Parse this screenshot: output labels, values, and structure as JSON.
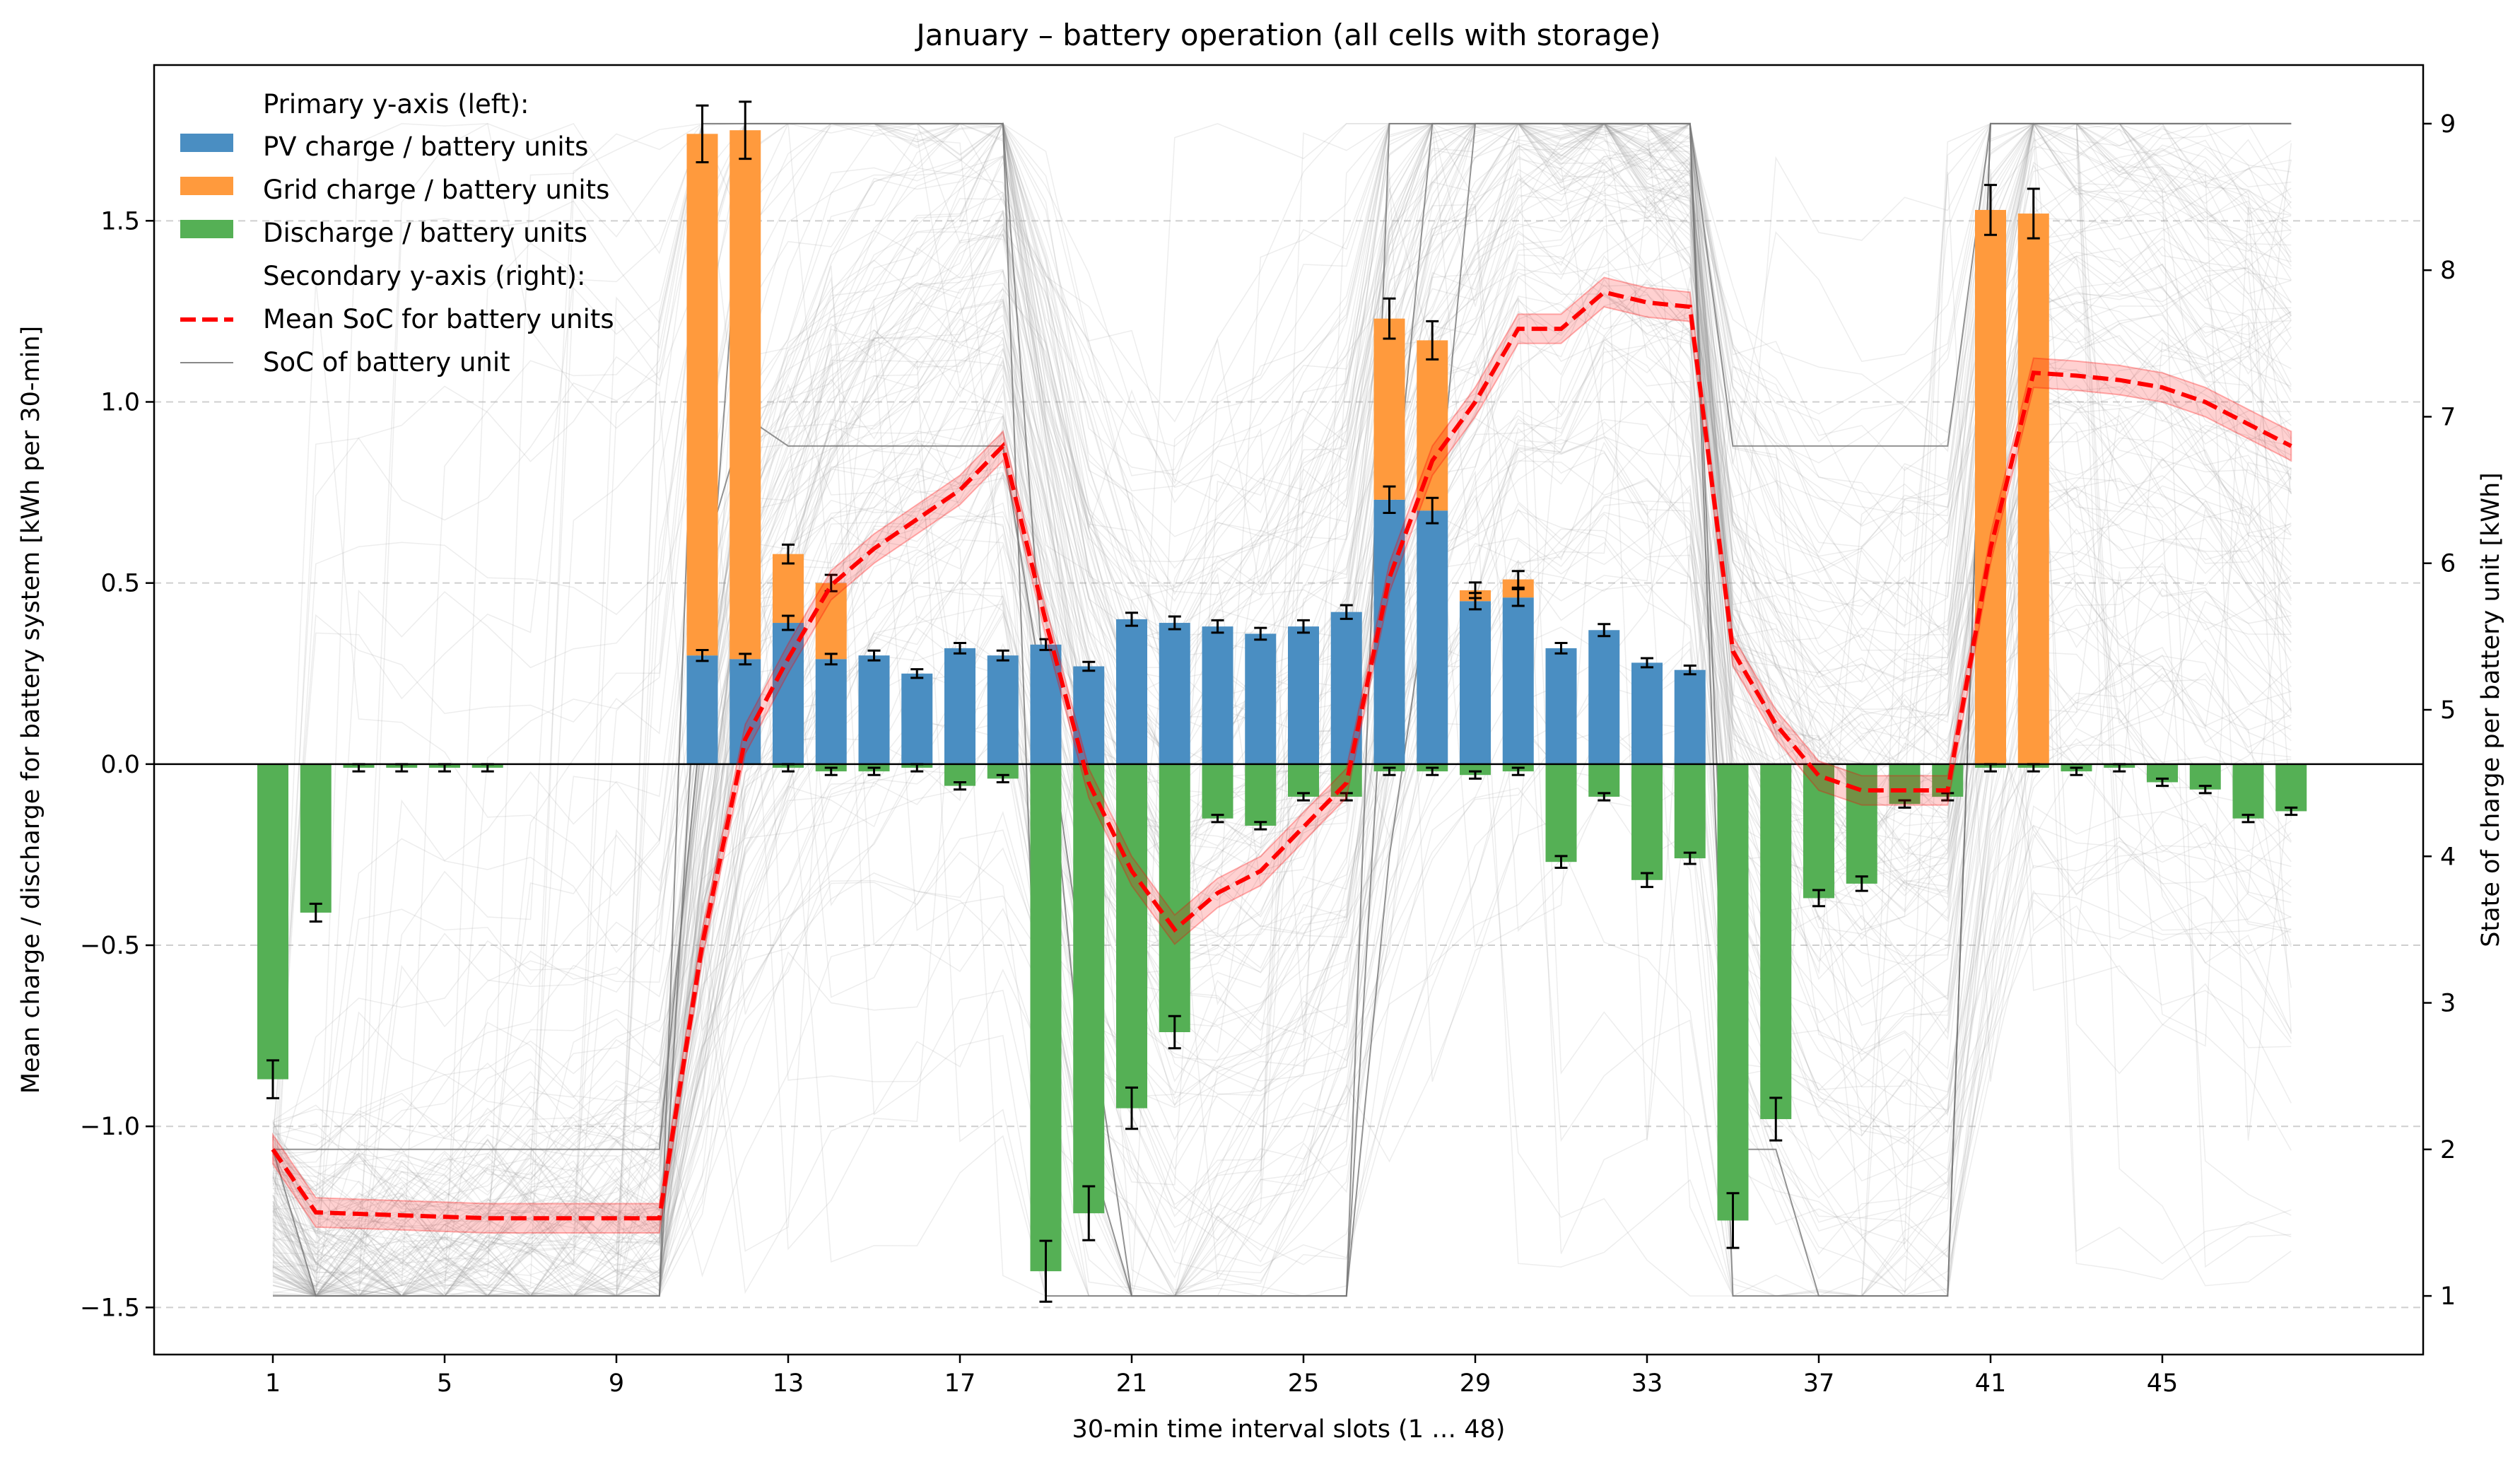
{
  "chart_data": {
    "type": "bar",
    "title": "January – battery operation (all cells with storage)",
    "xlabel": "30-min time interval slots (1 … 48)",
    "ylabel_left": "Mean charge / discharge for battery system [kWh per 30-min]",
    "ylabel_right": "State of charge per battery unit [kWh]",
    "x": [
      1,
      2,
      3,
      4,
      5,
      6,
      7,
      8,
      9,
      10,
      11,
      12,
      13,
      14,
      15,
      16,
      17,
      18,
      19,
      20,
      21,
      22,
      23,
      24,
      25,
      26,
      27,
      28,
      29,
      30,
      31,
      32,
      33,
      34,
      35,
      36,
      37,
      38,
      39,
      40,
      41,
      42,
      43,
      44,
      45,
      46,
      47,
      48
    ],
    "x_ticks": [
      1,
      5,
      9,
      13,
      17,
      21,
      25,
      29,
      33,
      37,
      41,
      45
    ],
    "ylim_left": [
      -1.63,
      1.93
    ],
    "yticks_left": [
      -1.5,
      -1.0,
      -0.5,
      0.0,
      0.5,
      1.0,
      1.5
    ],
    "ylim_right": [
      0.6,
      9.4
    ],
    "yticks_right": [
      1,
      2,
      3,
      4,
      5,
      6,
      7,
      8,
      9
    ],
    "grid": "horizontal dashed",
    "legend_position": "top-left",
    "legend": {
      "header_primary": "Primary y-axis (left):",
      "header_secondary": "Secondary y-axis (right):",
      "pv": "PV charge / battery units",
      "grid": "Grid charge / battery units",
      "discharge": "Discharge / battery units",
      "mean_soc": "Mean SoC for battery units",
      "unit_soc": "SoC of battery unit"
    },
    "colors": {
      "pv": "#4a8ec2",
      "grid": "#ff9a3d",
      "discharge": "#55b055",
      "mean_soc": "#ff0000",
      "unit_soc": "#888888"
    },
    "series": [
      {
        "name": "PV charge / battery units",
        "axis": "left",
        "stack": "charge",
        "values": [
          0,
          0,
          0,
          0,
          0,
          0,
          0,
          0,
          0,
          0,
          0.3,
          0.29,
          0.39,
          0.29,
          0.3,
          0.25,
          0.32,
          0.3,
          0.33,
          0.27,
          0.4,
          0.39,
          0.38,
          0.36,
          0.38,
          0.42,
          0.73,
          0.7,
          0.45,
          0.46,
          0.32,
          0.37,
          0.28,
          0.26,
          0,
          0,
          0,
          0,
          0,
          0,
          0,
          0,
          0,
          0,
          0,
          0,
          0,
          0
        ]
      },
      {
        "name": "Grid charge / battery units",
        "axis": "left",
        "stack": "charge",
        "values": [
          0,
          0,
          0,
          0,
          0,
          0,
          0,
          0,
          0,
          0,
          1.44,
          1.46,
          0.19,
          0.21,
          0,
          0,
          0,
          0,
          0,
          0,
          0,
          0,
          0,
          0,
          0,
          0,
          0.5,
          0.47,
          0.03,
          0.05,
          0,
          0,
          0,
          0,
          0,
          0,
          0,
          0,
          0,
          0,
          1.53,
          1.52,
          0,
          0,
          0,
          0,
          0,
          0
        ]
      },
      {
        "name": "Discharge / battery units",
        "axis": "left",
        "values": [
          -0.87,
          -0.41,
          -0.01,
          -0.01,
          -0.01,
          -0.01,
          0,
          0,
          0,
          0,
          0,
          0,
          -0.01,
          -0.02,
          -0.02,
          -0.01,
          -0.06,
          -0.04,
          -1.4,
          -1.24,
          -0.95,
          -0.74,
          -0.15,
          -0.17,
          -0.09,
          -0.09,
          -0.02,
          -0.02,
          -0.03,
          -0.02,
          -0.27,
          -0.09,
          -0.32,
          -0.26,
          -1.26,
          -0.98,
          -0.37,
          -0.33,
          -0.11,
          -0.09,
          -0.01,
          -0.01,
          -0.02,
          -0.01,
          -0.05,
          -0.07,
          -0.15,
          -0.13
        ]
      },
      {
        "name": "Mean SoC for battery units",
        "axis": "right",
        "type": "line",
        "values": [
          2.0,
          1.57,
          1.56,
          1.55,
          1.54,
          1.53,
          1.53,
          1.53,
          1.53,
          1.53,
          3.4,
          4.8,
          5.35,
          5.85,
          6.1,
          6.3,
          6.5,
          6.8,
          5.6,
          4.5,
          3.9,
          3.5,
          3.75,
          3.9,
          4.2,
          4.5,
          5.9,
          6.7,
          7.1,
          7.6,
          7.6,
          7.85,
          7.78,
          7.75,
          5.4,
          4.9,
          4.55,
          4.45,
          4.45,
          4.45,
          6.1,
          7.3,
          7.28,
          7.25,
          7.2,
          7.1,
          6.95,
          6.8
        ]
      }
    ]
  }
}
